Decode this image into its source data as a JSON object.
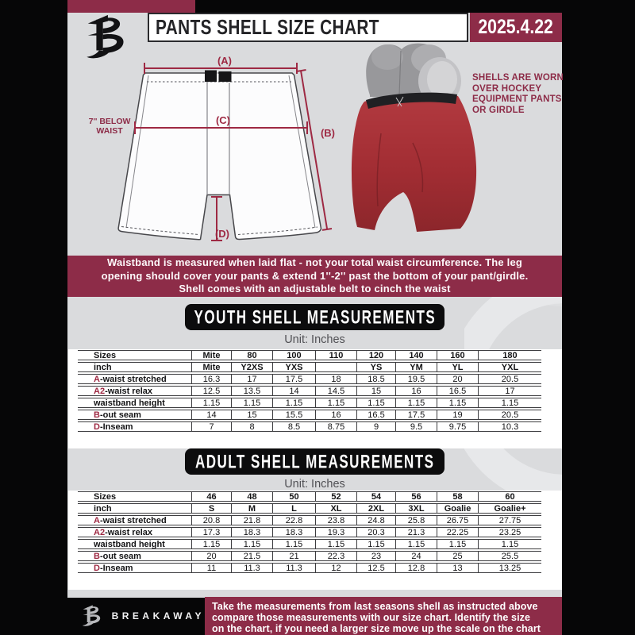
{
  "header": {
    "title": "PANTS SHELL SIZE CHART",
    "date": "2025.4.22"
  },
  "diagram": {
    "label_a": "(A)",
    "label_b": "(B)",
    "label_c": "(C)",
    "label_d": "(D)",
    "waist_note_line1": "7'' BELOW",
    "waist_note_line2": "WAIST",
    "shells_note_lines": [
      "SHELLS ARE WORN",
      "OVER HOCKEY",
      "EQUIPMENT PANTS",
      "OR GIRDLE"
    ]
  },
  "info_banner": {
    "lines": [
      "Waistband is measured when laid flat - not your total waist circumference. The leg",
      "opening should cover your pants & extend 1''-2'' past the bottom of your pant/girdle.",
      "Shell comes with an adjustable belt to cinch the waist"
    ]
  },
  "youth_section": {
    "heading": "YOUTH SHELL MEASUREMENTS",
    "unit": "Unit: Inches"
  },
  "adult_section": {
    "heading": "ADULT SHELL MEASUREMENTS",
    "unit": "Unit: Inches"
  },
  "youth_table": {
    "rows": [
      {
        "prefix": "",
        "label": "Sizes",
        "header": true,
        "values": [
          "Mite",
          "80",
          "100",
          "110",
          "120",
          "140",
          "160",
          "180"
        ]
      },
      {
        "prefix": "",
        "label": "inch",
        "header": true,
        "values": [
          "Mite",
          "Y2XS",
          "YXS",
          "",
          "YS",
          "YM",
          "YL",
          "YXL"
        ]
      },
      {
        "prefix": "A",
        "label": "-waist stretched",
        "header": false,
        "values": [
          "16.3",
          "17",
          "17.5",
          "18",
          "18.5",
          "19.5",
          "20",
          "20.5"
        ]
      },
      {
        "prefix": "A2",
        "label": "-waist relax",
        "header": false,
        "values": [
          "12.5",
          "13.5",
          "14",
          "14.5",
          "15",
          "16",
          "16.5",
          "17"
        ]
      },
      {
        "prefix": "",
        "label": "waistband height",
        "header": false,
        "values": [
          "1.15",
          "1.15",
          "1.15",
          "1.15",
          "1.15",
          "1.15",
          "1.15",
          "1.15"
        ]
      },
      {
        "prefix": "B",
        "label": "-out seam",
        "header": false,
        "values": [
          "14",
          "15",
          "15.5",
          "16",
          "16.5",
          "17.5",
          "19",
          "20.5"
        ]
      },
      {
        "prefix": "D",
        "label": "-Inseam",
        "header": false,
        "values": [
          "7",
          "8",
          "8.5",
          "8.75",
          "9",
          "9.5",
          "9.75",
          "10.3"
        ]
      }
    ]
  },
  "adult_table": {
    "rows": [
      {
        "prefix": "",
        "label": "Sizes",
        "header": true,
        "values": [
          "46",
          "48",
          "50",
          "52",
          "54",
          "56",
          "58",
          "60"
        ]
      },
      {
        "prefix": "",
        "label": "inch",
        "header": true,
        "values": [
          "S",
          "M",
          "L",
          "XL",
          "2XL",
          "3XL",
          "Goalie",
          "Goalie+"
        ]
      },
      {
        "prefix": "A",
        "label": "-waist stretched",
        "header": false,
        "values": [
          "20.8",
          "21.8",
          "22.8",
          "23.8",
          "24.8",
          "25.8",
          "26.75",
          "27.75"
        ]
      },
      {
        "prefix": "A2",
        "label": "-waist relax",
        "header": false,
        "values": [
          "17.3",
          "18.3",
          "18.3",
          "19.3",
          "20.3",
          "21.3",
          "22.25",
          "23.25"
        ]
      },
      {
        "prefix": "",
        "label": "waistband height",
        "header": false,
        "values": [
          "1.15",
          "1.15",
          "1.15",
          "1.15",
          "1.15",
          "1.15",
          "1.15",
          "1.15"
        ]
      },
      {
        "prefix": "B",
        "label": "-out seam",
        "header": false,
        "values": [
          "20",
          "21.5",
          "21",
          "22.3",
          "23",
          "24",
          "25",
          "25.5"
        ]
      },
      {
        "prefix": "D",
        "label": "-Inseam",
        "header": false,
        "values": [
          "11",
          "11.3",
          "11.3",
          "12",
          "12.5",
          "12.8",
          "13",
          "13.25"
        ]
      }
    ]
  },
  "footer": {
    "brand": "BREAKAWAY",
    "lines": [
      "Take the measurements from last seasons shell as instructed above",
      "compare those measurements  with our size chart. Identify the size",
      "on the chart, if you need a larger size move up the scale on the chart"
    ]
  },
  "colors": {
    "maroon": "#8d2c48",
    "line_maroon": "#9e2943",
    "bg_gray": "#dadbdd",
    "pants_red": "#a93036"
  }
}
